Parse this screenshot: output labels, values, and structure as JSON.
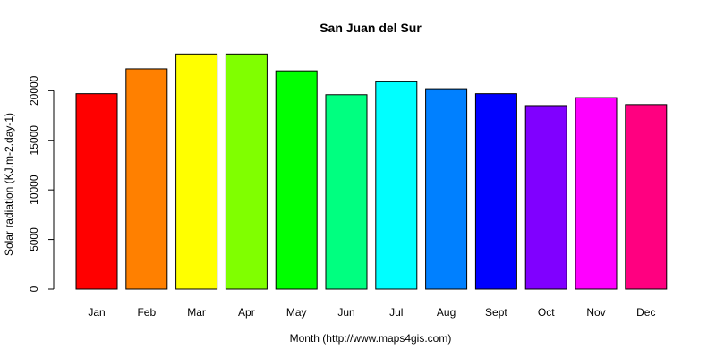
{
  "chart_data": {
    "type": "bar",
    "title": "San Juan del Sur",
    "xlabel": "Month (http://www.maps4gis.com)",
    "ylabel": "Solar radiation (KJ.m-2.day-1)",
    "ylim": [
      0,
      24000
    ],
    "yticks": [
      0,
      5000,
      10000,
      15000,
      20000
    ],
    "grid": false,
    "categories": [
      "Jan",
      "Feb",
      "Mar",
      "Apr",
      "May",
      "Jun",
      "Jul",
      "Aug",
      "Sept",
      "Oct",
      "Nov",
      "Dec"
    ],
    "values": [
      19700,
      22200,
      23700,
      23700,
      22000,
      19600,
      20900,
      20200,
      19700,
      18500,
      19300,
      18600
    ],
    "colors": [
      "#FF0000",
      "#FF8000",
      "#FFFF00",
      "#80FF00",
      "#00FF00",
      "#00FF80",
      "#00FFFF",
      "#0080FF",
      "#0000FF",
      "#8000FF",
      "#FF00FF",
      "#FF0080"
    ]
  }
}
